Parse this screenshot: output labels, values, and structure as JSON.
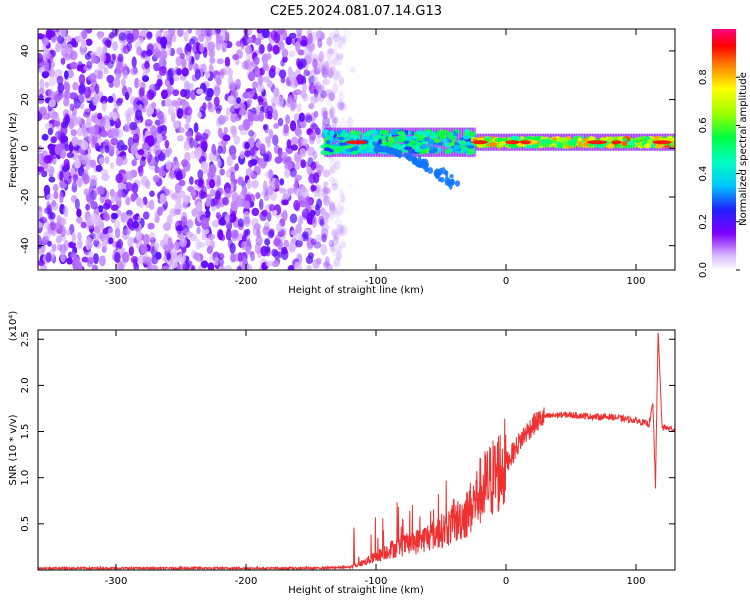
{
  "title": "C2E5.2024.081.07.14.G13",
  "chart_data": [
    {
      "type": "heatmap",
      "title": "C2E5.2024.081.07.14.G13",
      "xlabel": "Height of straight line (km)",
      "ylabel": "Frequency (Hz)",
      "xlim": [
        -360,
        130
      ],
      "ylim": [
        -50,
        49
      ],
      "xticks": [
        "-300",
        "-200",
        "-100",
        "0",
        "100"
      ],
      "yticks": [
        "40",
        "20",
        "0",
        "-20",
        "-40"
      ],
      "xtick_values": [
        -300,
        -200,
        -100,
        0,
        100
      ],
      "ytick_values": [
        40,
        20,
        0,
        -20,
        -40
      ],
      "colorbar": {
        "label": "Normalized spectral amplitude",
        "range": [
          0,
          1
        ],
        "ticks": [
          "0.0",
          "0.2",
          "0.4",
          "0.6",
          "0.8"
        ],
        "tick_values": [
          0.0,
          0.2,
          0.4,
          0.6,
          0.8
        ]
      },
      "features": [
        {
          "name": "broadband noise",
          "x_range": [
            -360,
            -125
          ],
          "freq_range": [
            -50,
            49
          ],
          "amplitude": 0.15
        },
        {
          "name": "signal band",
          "x_range": [
            -140,
            130
          ],
          "freq_center": 2.5,
          "amplitude": 0.9
        },
        {
          "name": "descending branch",
          "x_range": [
            -100,
            -37
          ],
          "freq_range": [
            -20,
            0
          ],
          "amplitude": 0.3
        }
      ]
    },
    {
      "type": "line",
      "xlabel": "Height of straight line (km)",
      "ylabel": "SNR (10 * v/v)",
      "multiplier_label": "(x10⁴)",
      "xlim": [
        -360,
        130
      ],
      "ylim": [
        0,
        2.6
      ],
      "xticks": [
        "-300",
        "-200",
        "-100",
        "0",
        "100"
      ],
      "yticks": [
        "0.5",
        "1.0",
        "1.5",
        "2.0",
        "2.5"
      ],
      "xtick_values": [
        -300,
        -200,
        -100,
        0,
        100
      ],
      "ytick_values": [
        0.5,
        1.0,
        1.5,
        2.0,
        2.5
      ],
      "series": [
        {
          "name": "SNR",
          "color": "#ee3030",
          "x": [
            -360,
            -250,
            -150,
            -120,
            -110,
            -100,
            -90,
            -80,
            -70,
            -60,
            -50,
            -40,
            -30,
            -25,
            -20,
            -15,
            -10,
            -5,
            0,
            5,
            10,
            15,
            20,
            25,
            30,
            40,
            50,
            60,
            70,
            80,
            90,
            100,
            110,
            113,
            115,
            117,
            120,
            130
          ],
          "y": [
            0.02,
            0.02,
            0.02,
            0.03,
            0.08,
            0.14,
            0.22,
            0.26,
            0.3,
            0.36,
            0.42,
            0.5,
            0.62,
            0.72,
            0.85,
            0.92,
            1.0,
            1.08,
            1.16,
            1.26,
            1.38,
            1.48,
            1.56,
            1.62,
            1.66,
            1.68,
            1.68,
            1.67,
            1.66,
            1.66,
            1.64,
            1.62,
            1.58,
            1.8,
            0.9,
            2.6,
            1.55,
            1.52
          ]
        }
      ]
    }
  ]
}
